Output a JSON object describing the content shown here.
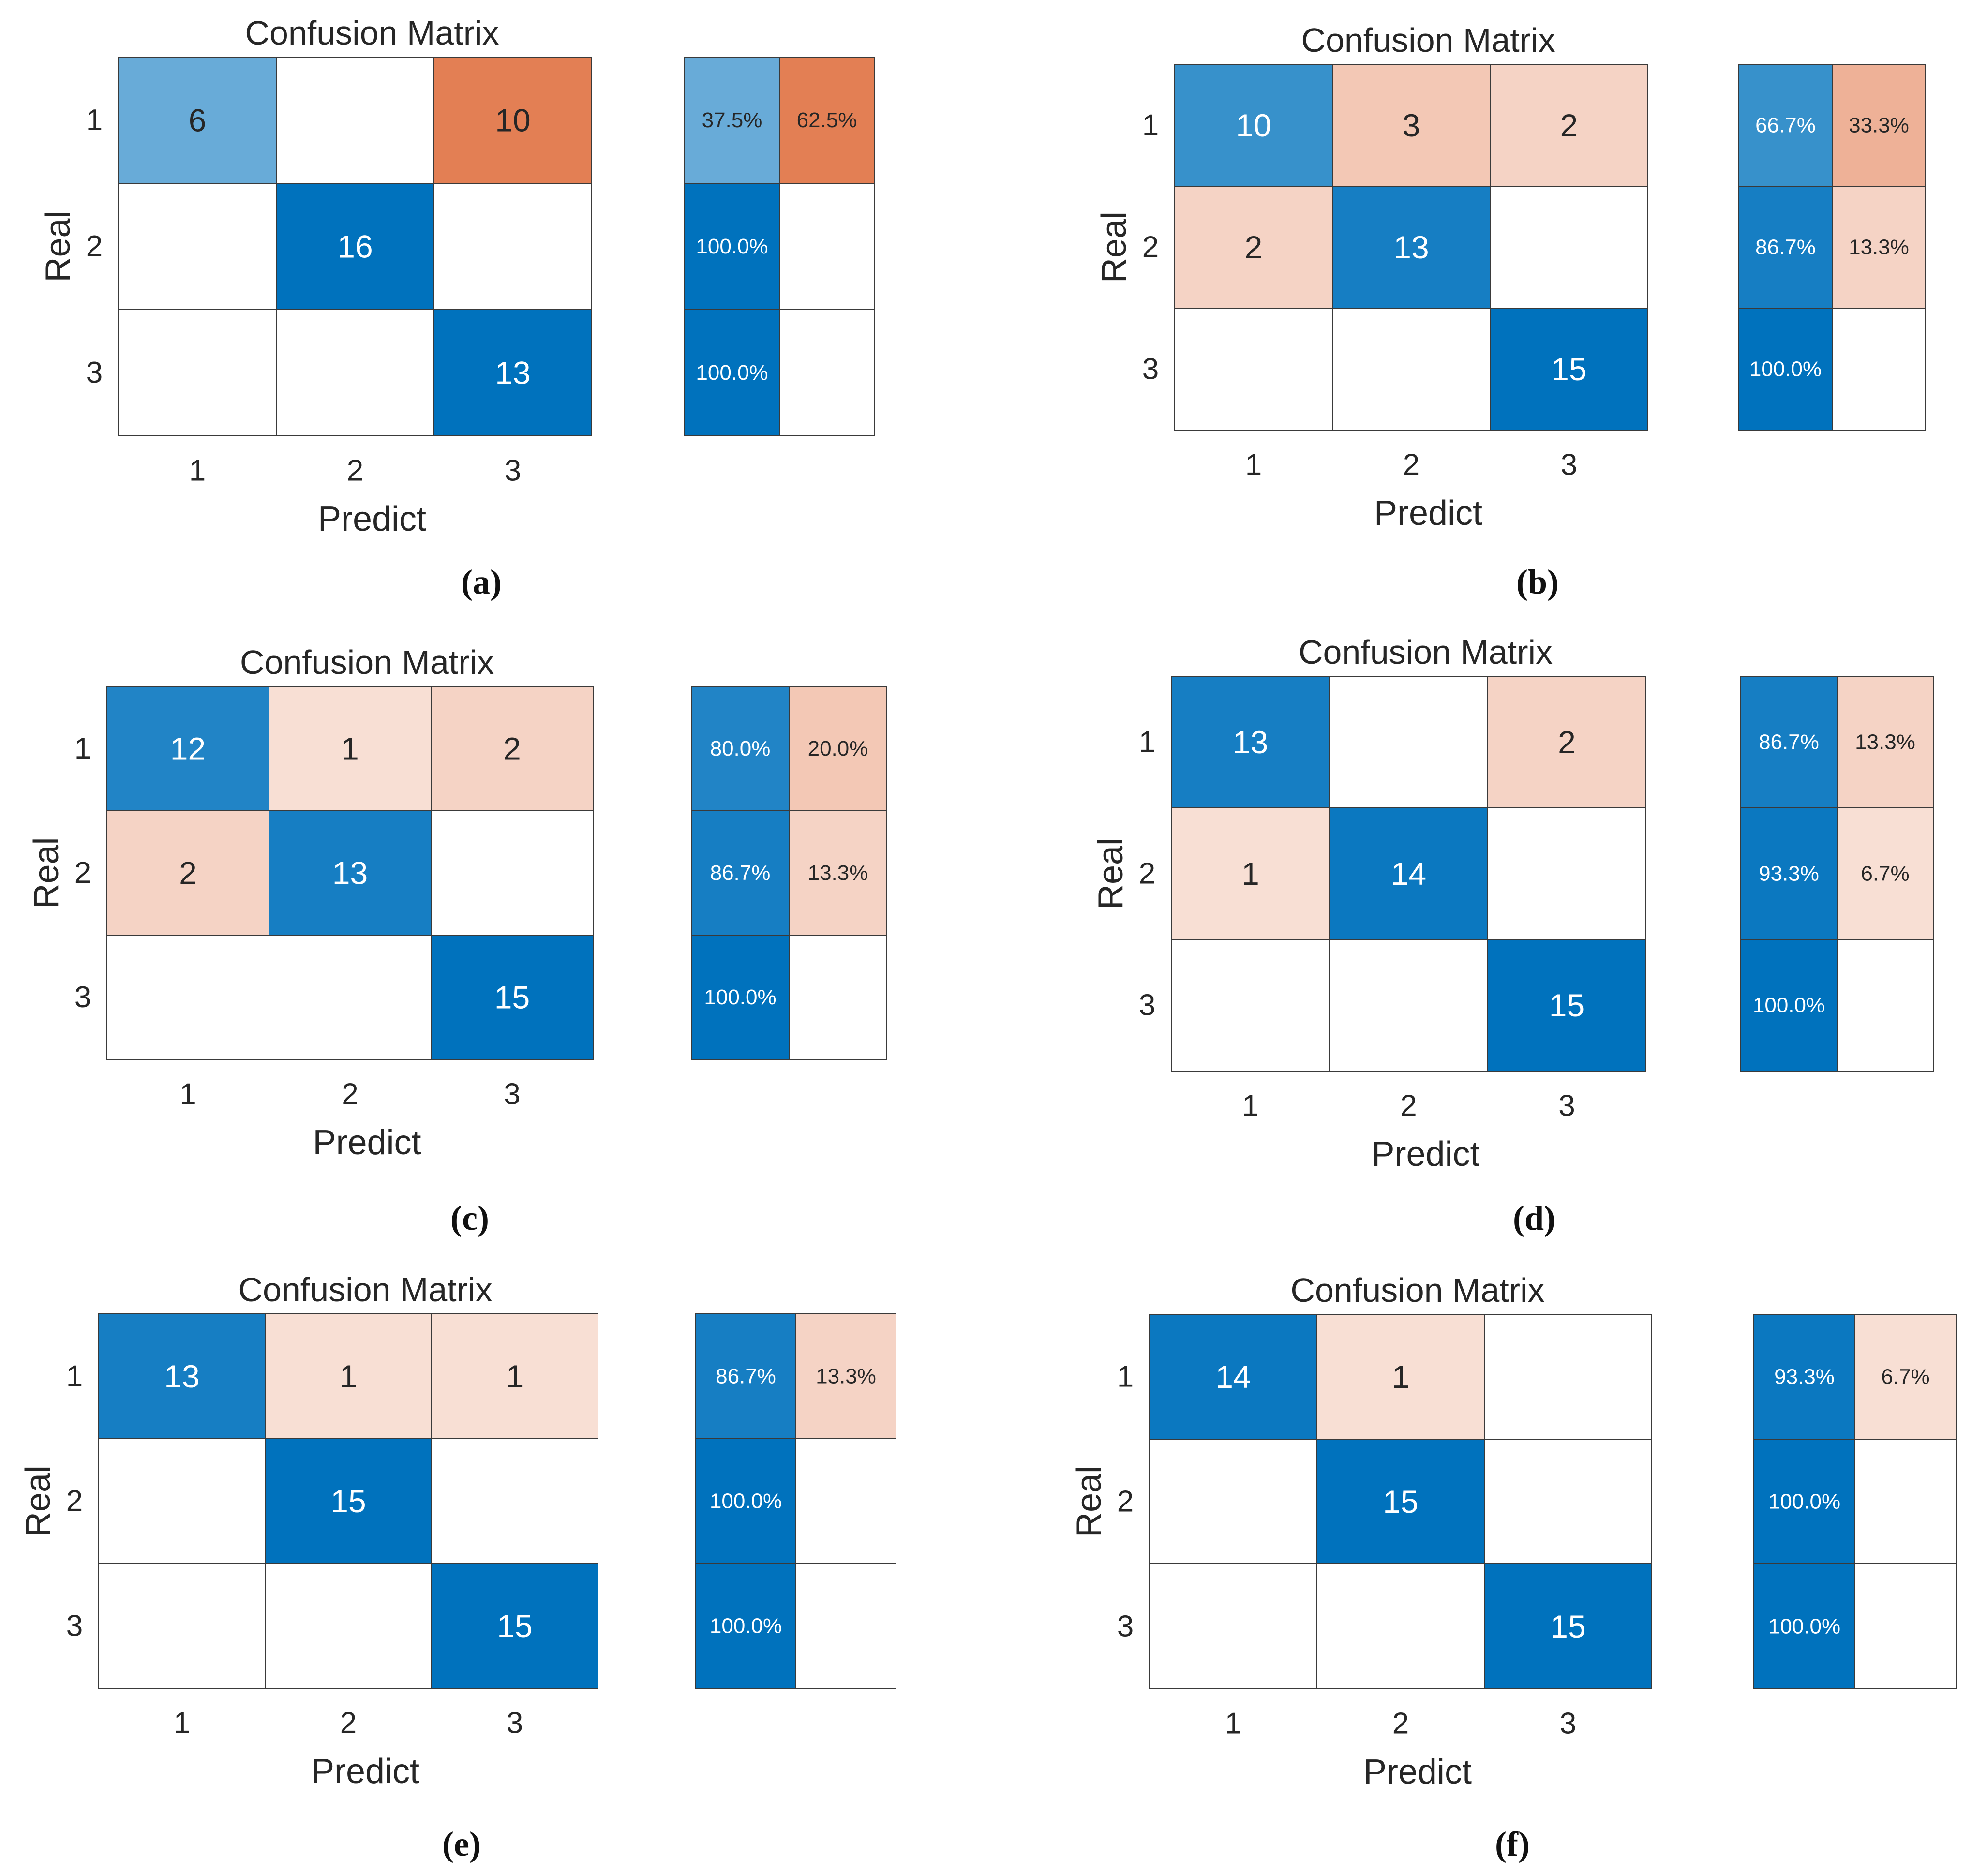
{
  "chart_data": [
    {
      "type": "heatmap",
      "panel": "(a)",
      "title": "Confusion Matrix",
      "xlabel": "Predict",
      "ylabel": "Real",
      "x_ticks": [
        "1",
        "2",
        "3"
      ],
      "y_ticks": [
        "1",
        "2",
        "3"
      ],
      "matrix": [
        [
          6,
          null,
          10
        ],
        [
          null,
          16,
          null
        ],
        [
          null,
          null,
          13
        ]
      ],
      "row_summary": [
        [
          "37.5%",
          "62.5%"
        ],
        [
          "100.0%",
          null
        ],
        [
          "100.0%",
          null
        ]
      ]
    },
    {
      "type": "heatmap",
      "panel": "(b)",
      "title": "Confusion Matrix",
      "xlabel": "Predict",
      "ylabel": "Real",
      "x_ticks": [
        "1",
        "2",
        "3"
      ],
      "y_ticks": [
        "1",
        "2",
        "3"
      ],
      "matrix": [
        [
          10,
          3,
          2
        ],
        [
          2,
          13,
          null
        ],
        [
          null,
          null,
          15
        ]
      ],
      "row_summary": [
        [
          "66.7%",
          "33.3%"
        ],
        [
          "86.7%",
          "13.3%"
        ],
        [
          "100.0%",
          null
        ]
      ]
    },
    {
      "type": "heatmap",
      "panel": "(c)",
      "title": "Confusion Matrix",
      "xlabel": "Predict",
      "ylabel": "Real",
      "x_ticks": [
        "1",
        "2",
        "3"
      ],
      "y_ticks": [
        "1",
        "2",
        "3"
      ],
      "matrix": [
        [
          12,
          1,
          2
        ],
        [
          2,
          13,
          null
        ],
        [
          null,
          null,
          15
        ]
      ],
      "row_summary": [
        [
          "80.0%",
          "20.0%"
        ],
        [
          "86.7%",
          "13.3%"
        ],
        [
          "100.0%",
          null
        ]
      ]
    },
    {
      "type": "heatmap",
      "panel": "(d)",
      "title": "Confusion Matrix",
      "xlabel": "Predict",
      "ylabel": "Real",
      "x_ticks": [
        "1",
        "2",
        "3"
      ],
      "y_ticks": [
        "1",
        "2",
        "3"
      ],
      "matrix": [
        [
          13,
          null,
          2
        ],
        [
          1,
          14,
          null
        ],
        [
          null,
          null,
          15
        ]
      ],
      "row_summary": [
        [
          "86.7%",
          "13.3%"
        ],
        [
          "93.3%",
          "6.7%"
        ],
        [
          "100.0%",
          null
        ]
      ]
    },
    {
      "type": "heatmap",
      "panel": "(e)",
      "title": "Confusion Matrix",
      "xlabel": "Predict",
      "ylabel": "Real",
      "x_ticks": [
        "1",
        "2",
        "3"
      ],
      "y_ticks": [
        "1",
        "2",
        "3"
      ],
      "matrix": [
        [
          13,
          1,
          1
        ],
        [
          null,
          15,
          null
        ],
        [
          null,
          null,
          15
        ]
      ],
      "row_summary": [
        [
          "86.7%",
          "13.3%"
        ],
        [
          "100.0%",
          null
        ],
        [
          "100.0%",
          null
        ]
      ]
    },
    {
      "type": "heatmap",
      "panel": "(f)",
      "title": "Confusion Matrix",
      "xlabel": "Predict",
      "ylabel": "Real",
      "x_ticks": [
        "1",
        "2",
        "3"
      ],
      "y_ticks": [
        "1",
        "2",
        "3"
      ],
      "matrix": [
        [
          14,
          1,
          null
        ],
        [
          null,
          15,
          null
        ],
        [
          null,
          null,
          15
        ]
      ],
      "row_summary": [
        [
          "93.3%",
          "6.7%"
        ],
        [
          "100.0%",
          null
        ],
        [
          "100.0%",
          null
        ]
      ]
    }
  ],
  "colors": {
    "correct_max": "#0072bd",
    "error_max": "#d95319",
    "cell_border": "#3a3a3a",
    "text_dark": "#262626"
  }
}
